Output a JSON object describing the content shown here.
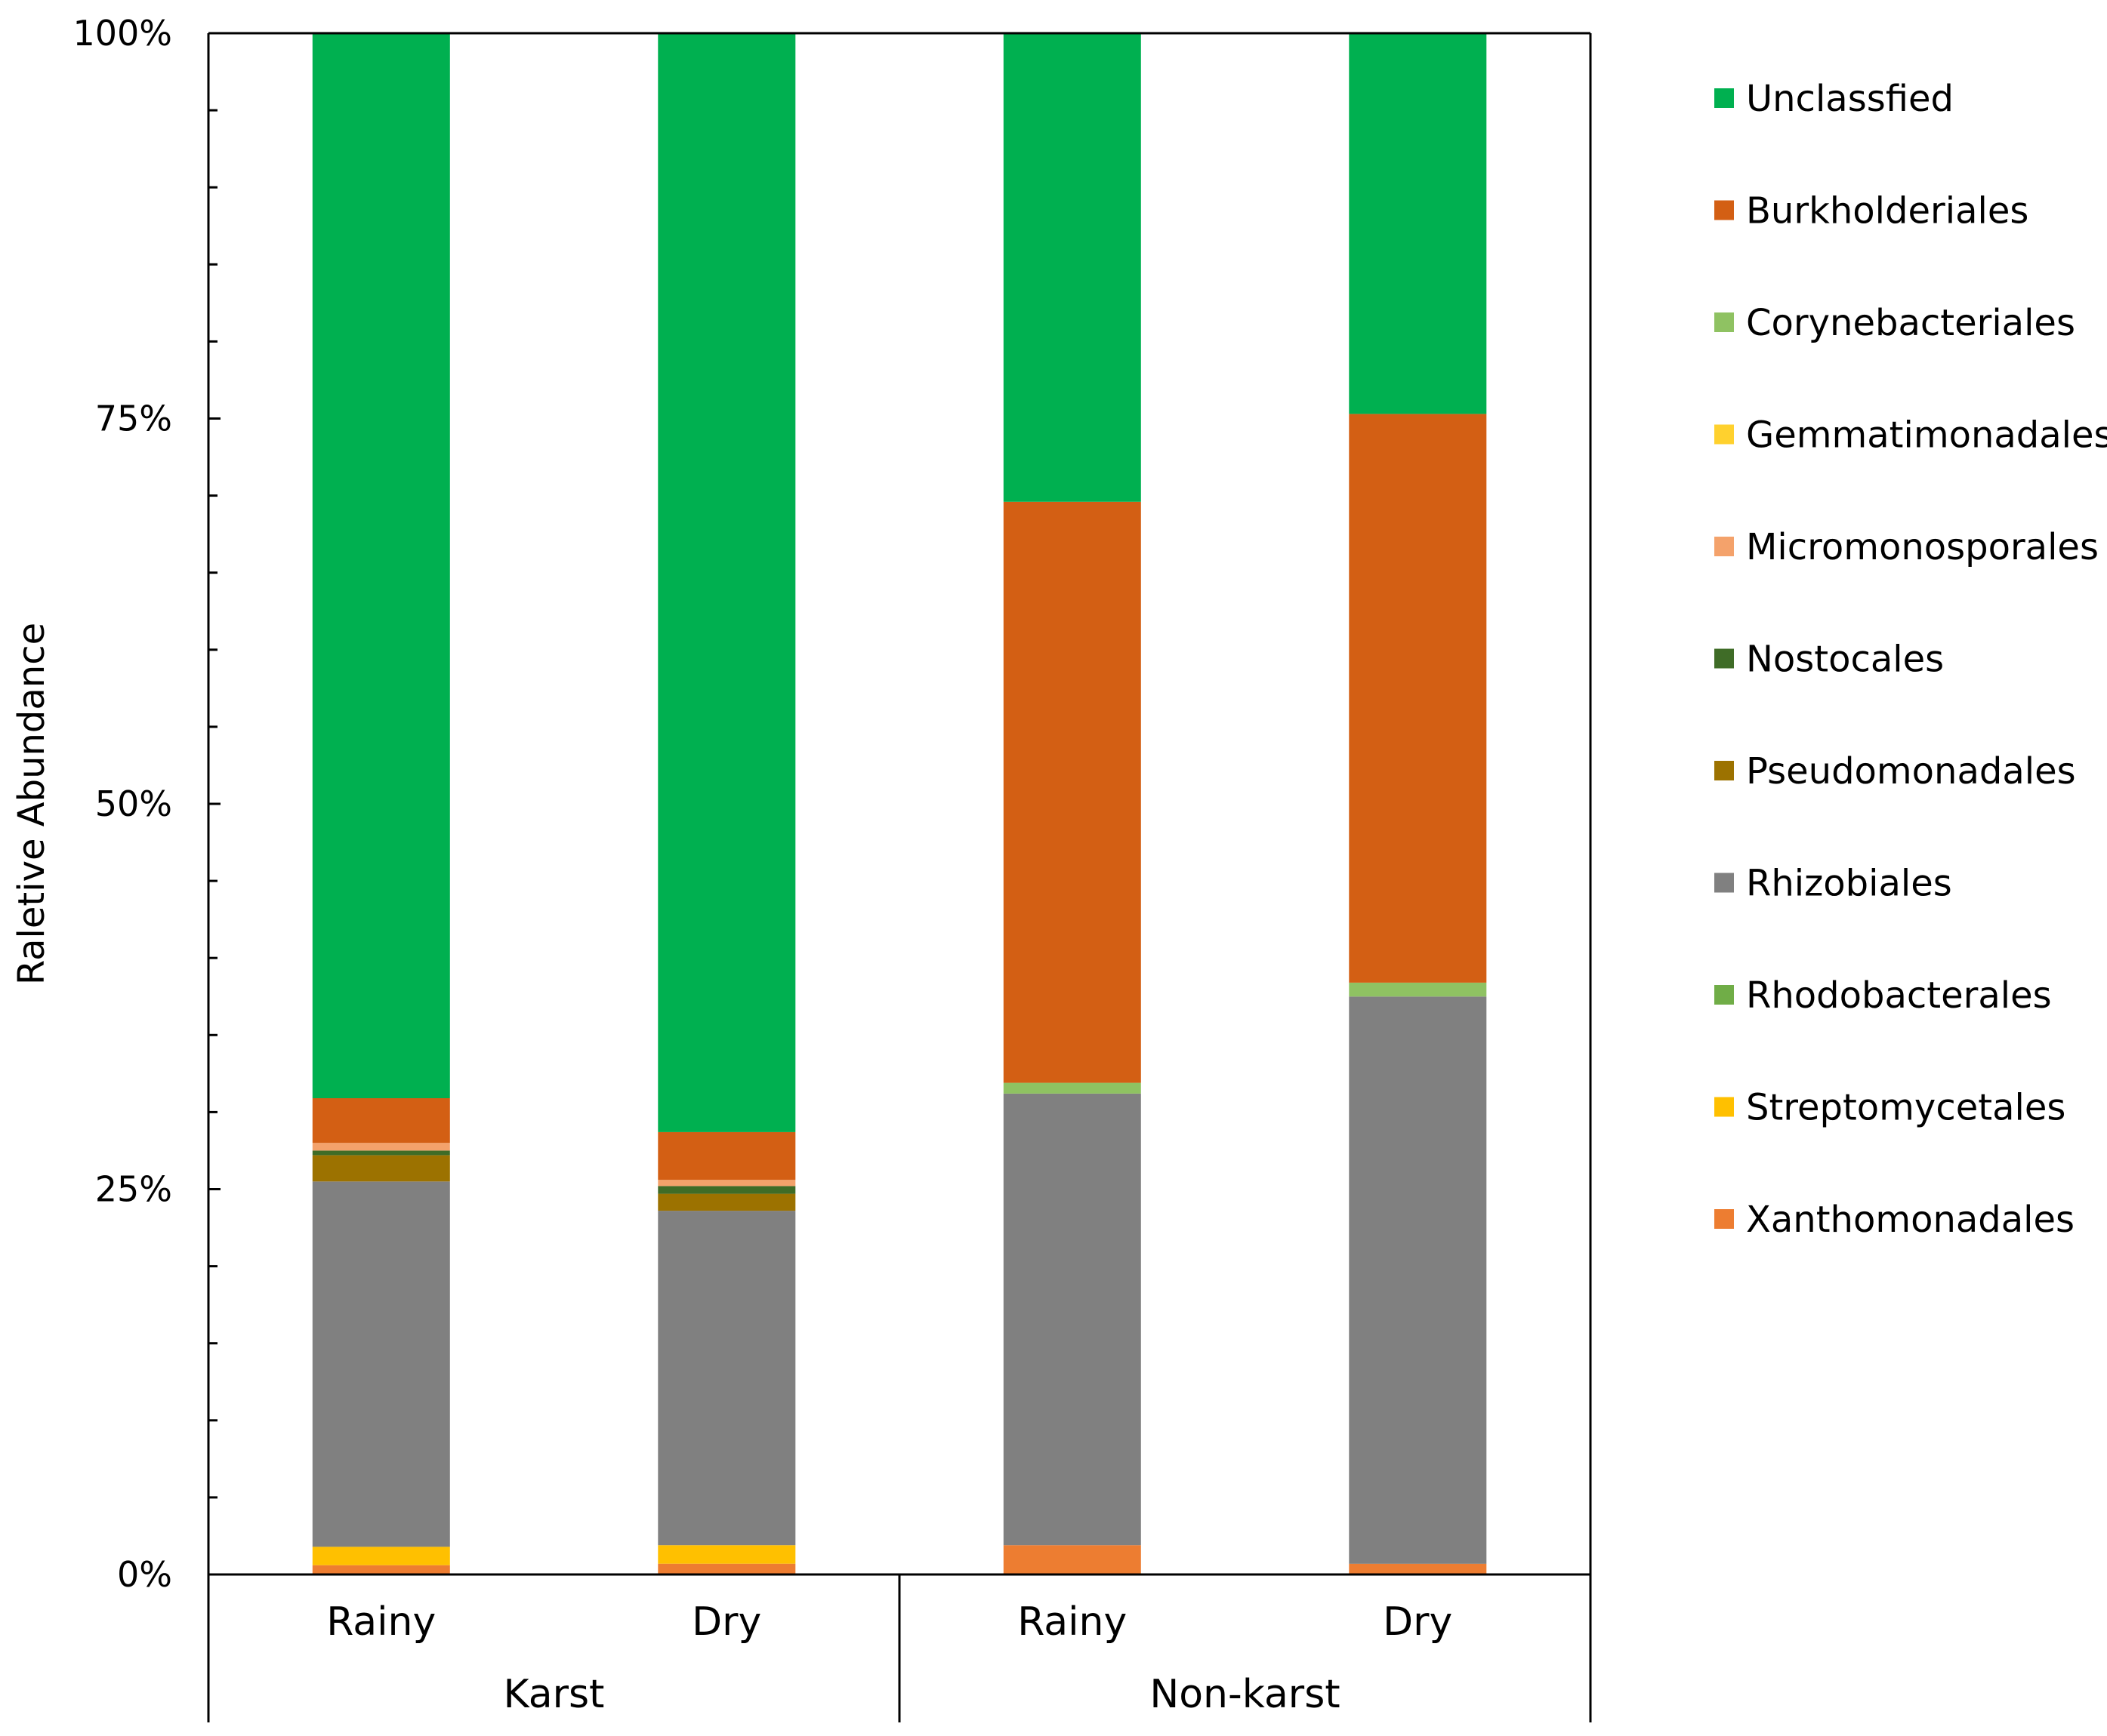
{
  "chart_data": {
    "type": "bar",
    "stacked": true,
    "title": "",
    "xlabel": "",
    "ylabel": "Raletive Abundance",
    "ylim": [
      0,
      100
    ],
    "y_ticks": [
      "0%",
      "25%",
      "50%",
      "75%",
      "100%"
    ],
    "groups": [
      {
        "name": "Karst",
        "categories": [
          "Rainy",
          "Dry"
        ]
      },
      {
        "name": "Non-karst",
        "categories": [
          "Rainy",
          "Dry"
        ]
      }
    ],
    "categories": [
      "Rainy",
      "Dry",
      "Rainy",
      "Dry"
    ],
    "legend_position": "right",
    "series": [
      {
        "name": "Xanthomonadales",
        "color": "#ED7D31",
        "values": [
          0.6,
          0.7,
          1.9,
          0.7
        ]
      },
      {
        "name": "Streptomycetales",
        "color": "#FFC000",
        "values": [
          1.2,
          1.2,
          0,
          0
        ]
      },
      {
        "name": "Rhodobacterales",
        "color": "#70AD47",
        "values": [
          0,
          0,
          0,
          0
        ]
      },
      {
        "name": "Rhizobiales",
        "color": "#808080",
        "values": [
          23.7,
          21.7,
          29.3,
          36.8
        ]
      },
      {
        "name": "Pseudomonadales",
        "color": "#9C7200",
        "values": [
          1.7,
          1.1,
          0,
          0
        ]
      },
      {
        "name": "Nostocales",
        "color": "#3F6C27",
        "values": [
          0.3,
          0.5,
          0,
          0
        ]
      },
      {
        "name": "Micromonosporales",
        "color": "#F4A26B",
        "values": [
          0.5,
          0.4,
          0,
          0
        ]
      },
      {
        "name": "Corynebacteriales",
        "color": "#8FC262",
        "values": [
          0,
          0,
          0.7,
          0.9
        ]
      },
      {
        "name": "Burkholderiales",
        "color": "#D35F14",
        "values": [
          2.9,
          3.1,
          37.7,
          36.9
        ]
      },
      {
        "name": "Unclassfied",
        "color": "#00B050",
        "values": [
          69.1,
          71.3,
          30.4,
          24.7
        ]
      }
    ],
    "legend_order": [
      "Unclassfied",
      "Burkholderiales",
      "Corynebacteriales",
      "Gemmatimonadales",
      "Micromonosporales",
      "Nostocales",
      "Pseudomonadales",
      "Rhizobiales",
      "Rhodobacterales",
      "Streptomycetales",
      "Xanthomonadales"
    ],
    "legend_colors": {
      "Unclassfied": "#00B050",
      "Burkholderiales": "#D35F14",
      "Corynebacteriales": "#8FC262",
      "Gemmatimonadales": "#FFD12E",
      "Micromonosporales": "#F4A26B",
      "Nostocales": "#3F6C27",
      "Pseudomonadales": "#9C7200",
      "Rhizobiales": "#808080",
      "Rhodobacterales": "#70AD47",
      "Streptomycetales": "#FFC000",
      "Xanthomonadales": "#ED7D31"
    }
  }
}
